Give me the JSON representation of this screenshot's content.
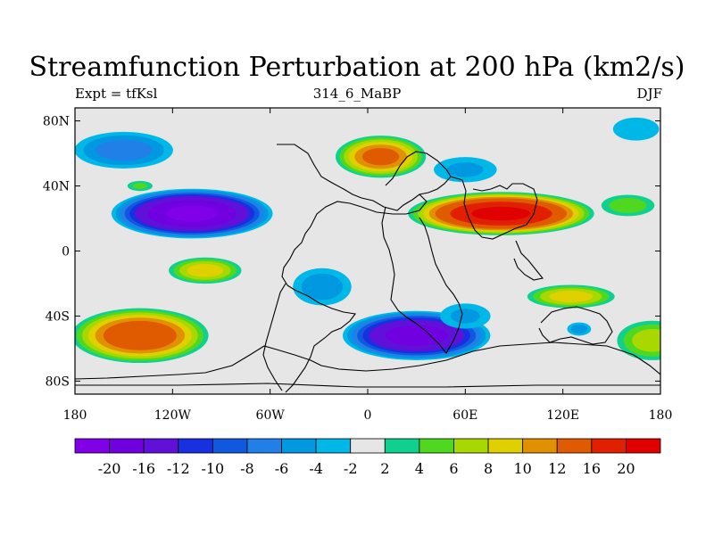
{
  "title": "Streamfunction Perturbation at 200 hPa (km2/s)",
  "left_label": "Expt = tfKsl",
  "center_label": "314_6_MaBP",
  "right_label": "DJF",
  "map": {
    "projection": "cylindrical equidistant",
    "lon_range": [
      -180,
      180
    ],
    "lat_range": [
      -88,
      88
    ],
    "lat_ticks": [
      {
        "value": 80,
        "label": "80N"
      },
      {
        "value": 40,
        "label": "40N"
      },
      {
        "value": 0,
        "label": "0"
      },
      {
        "value": -40,
        "label": "40S"
      },
      {
        "value": -80,
        "label": "80S"
      }
    ],
    "lon_ticks": [
      {
        "value": -180,
        "label": "180"
      },
      {
        "value": -120,
        "label": "120W"
      },
      {
        "value": -60,
        "label": "60W"
      },
      {
        "value": 0,
        "label": "0"
      },
      {
        "value": 60,
        "label": "60E"
      },
      {
        "value": 120,
        "label": "120E"
      },
      {
        "value": 180,
        "label": "180"
      }
    ],
    "background_color": "#e6e6e6",
    "features": [
      {
        "name": "central-north-pacific-low",
        "lon": -108,
        "lat": 23,
        "sign": -1,
        "peak": 22,
        "rx": 52,
        "ry": 16
      },
      {
        "name": "north-pacific-low",
        "lon": -150,
        "lat": 62,
        "sign": -1,
        "peak": 8,
        "rx": 35,
        "ry": 13
      },
      {
        "name": "north-pacific-high-small",
        "lon": -140,
        "lat": 40,
        "sign": 1,
        "peak": 5,
        "rx": 10,
        "ry": 4
      },
      {
        "name": "north-atlantic-europe-high",
        "lon": 8,
        "lat": 58,
        "sign": 1,
        "peak": 14,
        "rx": 30,
        "ry": 14
      },
      {
        "name": "asia-high",
        "lon": 82,
        "lat": 23,
        "sign": 1,
        "peak": 22,
        "rx": 60,
        "ry": 14
      },
      {
        "name": "far-east-high",
        "lon": 160,
        "lat": 28,
        "sign": 1,
        "peak": 6,
        "rx": 20,
        "ry": 8
      },
      {
        "name": "siberia-low",
        "lon": 60,
        "lat": 50,
        "sign": -1,
        "peak": 5,
        "rx": 25,
        "ry": 10
      },
      {
        "name": "arctic-low",
        "lon": 165,
        "lat": 75,
        "sign": -1,
        "peak": 4,
        "rx": 20,
        "ry": 10
      },
      {
        "name": "south-pacific-high",
        "lon": -100,
        "lat": -12,
        "sign": 1,
        "peak": 10,
        "rx": 25,
        "ry": 9
      },
      {
        "name": "southeast-pacific-high",
        "lon": -140,
        "lat": -52,
        "sign": 1,
        "peak": 16,
        "rx": 45,
        "ry": 18
      },
      {
        "name": "south-atlantic-low",
        "lon": -28,
        "lat": -22,
        "sign": -1,
        "peak": 6,
        "rx": 22,
        "ry": 14
      },
      {
        "name": "southern-ocean-low",
        "lon": 30,
        "lat": -52,
        "sign": -1,
        "peak": 19,
        "rx": 48,
        "ry": 16
      },
      {
        "name": "indian-ocean-low-tail",
        "lon": 60,
        "lat": -40,
        "sign": -1,
        "peak": 5,
        "rx": 20,
        "ry": 10
      },
      {
        "name": "australia-high",
        "lon": 125,
        "lat": -28,
        "sign": 1,
        "peak": 10,
        "rx": 30,
        "ry": 8
      },
      {
        "name": "new-zealand-high",
        "lon": 175,
        "lat": -55,
        "sign": 1,
        "peak": 8,
        "rx": 25,
        "ry": 14
      },
      {
        "name": "tasman-low",
        "lon": 130,
        "lat": -48,
        "sign": -1,
        "peak": 6,
        "rx": 9,
        "ry": 5
      }
    ]
  },
  "colorbar": {
    "labels": [
      "-20",
      "-16",
      "-12",
      "-10",
      "-8",
      "-6",
      "-4",
      "-2",
      "2",
      "4",
      "6",
      "8",
      "10",
      "12",
      "16",
      "20"
    ],
    "levels": [
      -20,
      -16,
      -12,
      -10,
      -8,
      -6,
      -4,
      -2,
      2,
      4,
      6,
      8,
      10,
      12,
      16,
      20
    ],
    "colors": [
      "#8000e8",
      "#7000e0",
      "#6010d8",
      "#1830e0",
      "#1058e0",
      "#2080e8",
      "#0098e0",
      "#00b8e8",
      "#e6e6e6",
      "#10d090",
      "#50d820",
      "#a8d800",
      "#e0d000",
      "#e09000",
      "#e05a00",
      "#e02000",
      "#e00000"
    ]
  }
}
